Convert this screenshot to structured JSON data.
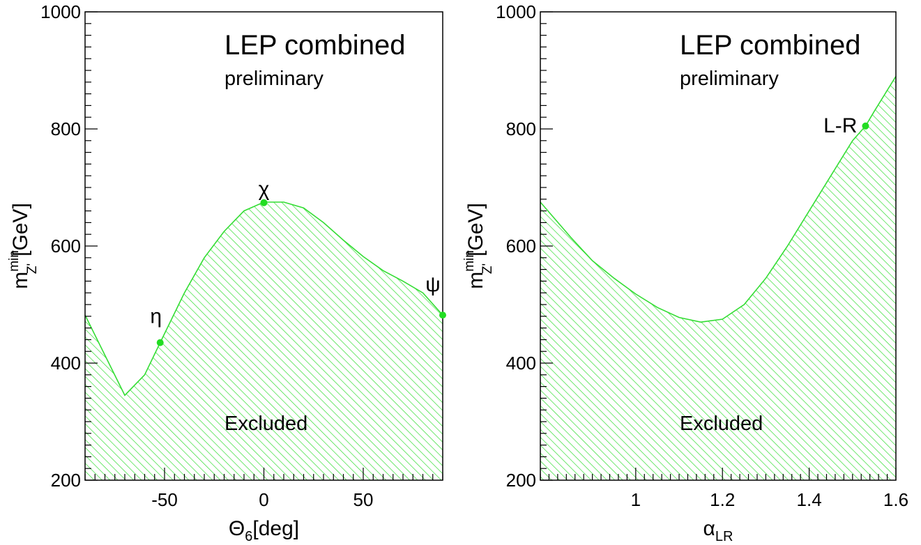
{
  "chart_data": [
    {
      "type": "area",
      "xlabel": "Θ",
      "xlabel_sub": "6",
      "xlabel_unit": "[deg]",
      "ylabel_main": "m",
      "ylabel_sup": "min",
      "ylabel_sub": "Z'",
      "ylabel_unit": "[GeV]",
      "xlim": [
        -90,
        90
      ],
      "ylim": [
        200,
        1000
      ],
      "x_ticks": [
        -50,
        0,
        50
      ],
      "x_tick_labels": [
        "-50",
        "0",
        "50"
      ],
      "y_ticks": [
        200,
        400,
        600,
        800,
        1000
      ],
      "y_tick_labels": [
        "200",
        "400",
        "600",
        "800",
        "1000"
      ],
      "title": "LEP combined",
      "subtitle": "preliminary",
      "region_label": "Excluded",
      "fill_color": "#33dd33",
      "boundary": {
        "x": [
          -90,
          -70,
          -60,
          -52.2,
          -40,
          -30,
          -20,
          -10,
          0,
          10,
          20,
          30,
          40,
          50,
          60,
          70,
          80,
          90
        ],
        "y": [
          482,
          345,
          380,
          435,
          520,
          580,
          625,
          660,
          675,
          675,
          665,
          640,
          610,
          582,
          558,
          540,
          520,
          482
        ]
      },
      "points": [
        {
          "label": "η",
          "x": -52.2,
          "y": 435
        },
        {
          "label": "χ",
          "x": 0,
          "y": 674
        },
        {
          "label": "ψ",
          "x": 90,
          "y": 482
        }
      ]
    },
    {
      "type": "area",
      "xlabel": "α",
      "xlabel_sub": "LR",
      "xlabel_unit": "",
      "ylabel_main": "m",
      "ylabel_sup": "min",
      "ylabel_sub": "Z'",
      "ylabel_unit": "[GeV]",
      "xlim": [
        0.78,
        1.6
      ],
      "ylim": [
        200,
        1000
      ],
      "x_ticks": [
        1.0,
        1.2,
        1.4,
        1.6
      ],
      "x_tick_labels": [
        "1",
        "1.2",
        "1.4",
        "1.6"
      ],
      "y_ticks": [
        200,
        400,
        600,
        800,
        1000
      ],
      "y_tick_labels": [
        "200",
        "400",
        "600",
        "800",
        "1000"
      ],
      "title": "LEP combined",
      "subtitle": "preliminary",
      "region_label": "Excluded",
      "fill_color": "#33dd33",
      "boundary": {
        "x": [
          0.78,
          0.85,
          0.9,
          0.95,
          1.0,
          1.05,
          1.1,
          1.15,
          1.2,
          1.25,
          1.3,
          1.35,
          1.4,
          1.45,
          1.5,
          1.53,
          1.55,
          1.6
        ],
        "y": [
          675,
          615,
          575,
          545,
          518,
          495,
          478,
          470,
          475,
          500,
          545,
          600,
          660,
          720,
          780,
          805,
          830,
          890
        ]
      },
      "points": [
        {
          "label": "L-R",
          "x": 1.53,
          "y": 805
        }
      ]
    }
  ]
}
